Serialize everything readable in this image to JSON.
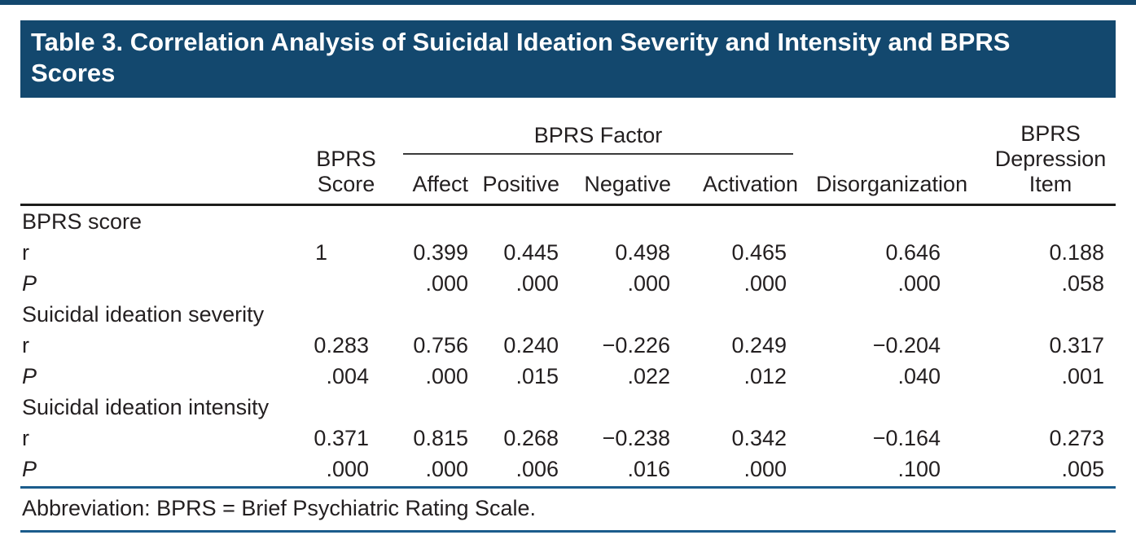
{
  "colors": {
    "navy": "#13486E",
    "rule_blue": "#1B5C8C",
    "rule_black": "#1D1D1B",
    "text": "#231F20"
  },
  "title": {
    "line1": "Table 3. Correlation Analysis of Suicidal Ideation Severity and Intensity and BPRS",
    "line2": "Scores",
    "full": "Table 3. Correlation Analysis of Suicidal Ideation Severity and Intensity and BPRS Scores"
  },
  "table": {
    "header": {
      "score_col": [
        "BPRS",
        "Score"
      ],
      "factor_group": "BPRS Factor",
      "factor_cols": [
        "Affect",
        "Positive",
        "Negative",
        "Activation"
      ],
      "disorganization_col": "Disorganization",
      "depression_col": [
        "BPRS",
        "Depression",
        "Item"
      ]
    },
    "sections": [
      {
        "label": "BPRS score",
        "rows": [
          {
            "label": "r",
            "italic": false,
            "values": [
              "1",
              "0.399",
              "0.445",
              "0.498",
              "0.465",
              "0.646",
              "0.188"
            ]
          },
          {
            "label": "P",
            "italic": true,
            "values": [
              "",
              ".000",
              ".000",
              ".000",
              ".000",
              ".000",
              ".058"
            ]
          }
        ]
      },
      {
        "label": "Suicidal ideation severity",
        "rows": [
          {
            "label": "r",
            "italic": false,
            "values": [
              "0.283",
              "0.756",
              "0.240",
              "−0.226",
              "0.249",
              "−0.204",
              "0.317"
            ]
          },
          {
            "label": "P",
            "italic": true,
            "values": [
              ".004",
              ".000",
              ".015",
              ".022",
              ".012",
              ".040",
              ".001"
            ]
          }
        ]
      },
      {
        "label": "Suicidal ideation intensity",
        "rows": [
          {
            "label": "r",
            "italic": false,
            "values": [
              "0.371",
              "0.815",
              "0.268",
              "−0.238",
              "0.342",
              "−0.164",
              "0.273"
            ]
          },
          {
            "label": "P",
            "italic": true,
            "values": [
              ".000",
              ".000",
              ".006",
              ".016",
              ".000",
              ".100",
              ".005"
            ]
          }
        ]
      }
    ],
    "footnote": "Abbreviation: BPRS = Brief Psychiatric Rating Scale."
  }
}
